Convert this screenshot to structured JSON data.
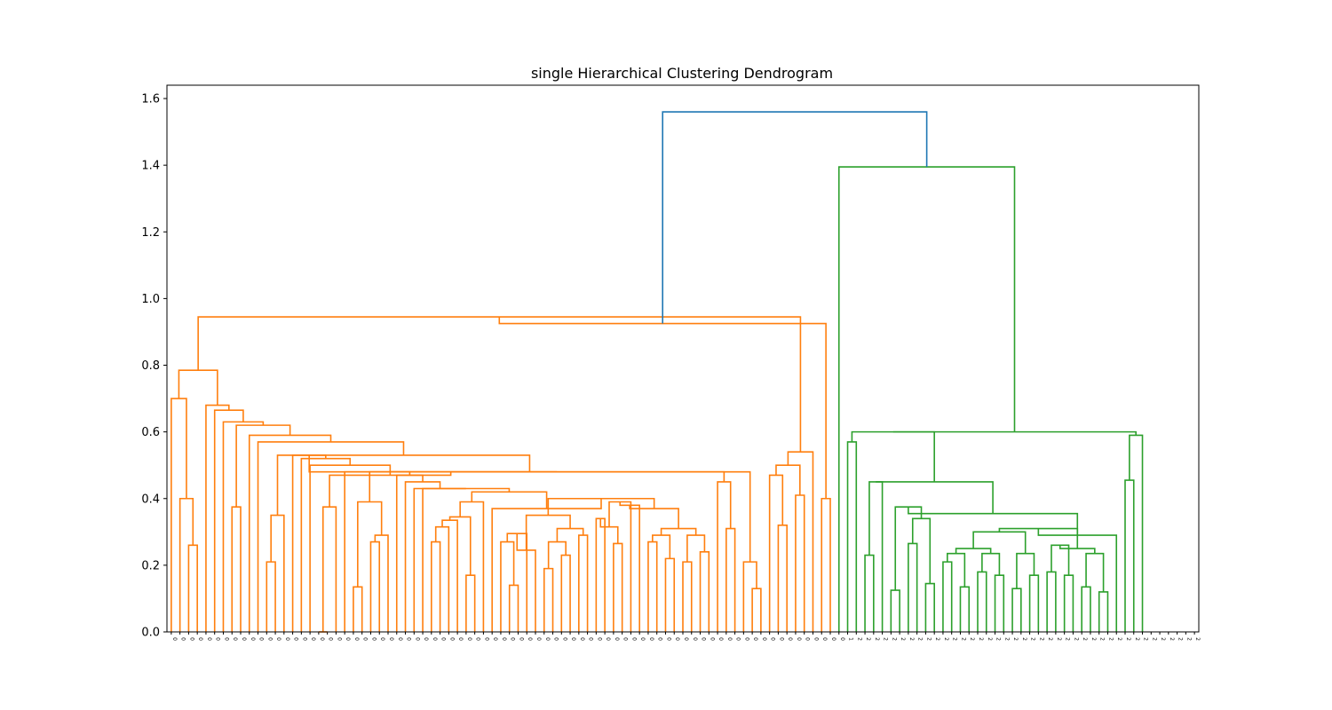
{
  "chart_data": {
    "type": "dendrogram",
    "title": "single Hierarchical Clustering Dendrogram",
    "xlabel": "",
    "ylabel": "",
    "ylim": [
      0,
      1.64
    ],
    "yticks": [
      "0.0",
      "0.2",
      "0.4",
      "0.6",
      "0.8",
      "1.0",
      "1.2",
      "1.4",
      "1.6"
    ],
    "grid": false,
    "colors": {
      "cluster_0": "#ff7f0e",
      "cluster_2": "#2ca02c",
      "root": "#1f77b4"
    },
    "leaf_labels": [
      "0",
      "0",
      "0",
      "0",
      "0",
      "0",
      "0",
      "0",
      "0",
      "0",
      "0",
      "0",
      "0",
      "0",
      "0",
      "0",
      "0",
      "0",
      "0",
      "0",
      "0",
      "0",
      "0",
      "0",
      "0",
      "0",
      "0",
      "0",
      "0",
      "0",
      "0",
      "0",
      "0",
      "0",
      "0",
      "0",
      "0",
      "0",
      "0",
      "0",
      "0",
      "0",
      "0",
      "0",
      "0",
      "0",
      "0",
      "0",
      "0",
      "0",
      "0",
      "0",
      "0",
      "0",
      "0",
      "0",
      "0",
      "0",
      "0",
      "0",
      "0",
      "0",
      "0",
      "0",
      "0",
      "0",
      "0",
      "0",
      "0",
      "0",
      "0",
      "0",
      "0",
      "0",
      "0",
      "0",
      "0",
      "0",
      "1",
      "2",
      "2",
      "2",
      "2",
      "2",
      "2",
      "2",
      "2",
      "2",
      "2",
      "2",
      "2",
      "2",
      "2",
      "2",
      "2",
      "2",
      "2",
      "2",
      "2",
      "2",
      "2",
      "2",
      "2",
      "2",
      "2",
      "2",
      "2",
      "2",
      "2",
      "2",
      "2",
      "2",
      "2",
      "2",
      "2",
      "2",
      "2",
      "2",
      "2"
    ],
    "links": [
      [
        0,
        1.0,
        1.0,
        0,
        0.26,
        0.26,
        0.0,
        0.0,
        "0"
      ],
      [
        0.0,
        0.4,
        0.4,
        0.26,
        0.0,
        0.0,
        0.0,
        0.0,
        "0"
      ],
      [
        0.0,
        0.7,
        0.7,
        0.4,
        0.0,
        0.0,
        0.0,
        0.0,
        "0"
      ],
      [
        0.0,
        0.78,
        0.78,
        0.7,
        0.0,
        0.0,
        0.0,
        0.0,
        "0"
      ],
      [
        1,
        2,
        2,
        3,
        0,
        0,
        0,
        0,
        "skip"
      ]
    ],
    "main_merges": [
      {
        "height": 1.56,
        "between": [
          "cluster_0",
          "cluster_2"
        ],
        "color": "root"
      },
      {
        "height": 1.395,
        "between": [
          "leaf_1",
          "cluster_2_core"
        ],
        "color": "cluster_2"
      },
      {
        "height": 0.945,
        "between": [
          "cluster_0_core",
          "cluster_0_right"
        ],
        "color": "cluster_0"
      },
      {
        "height": 0.6,
        "between": [
          "cluster_2_core",
          "cluster_2_right"
        ],
        "color": "cluster_2"
      }
    ]
  }
}
